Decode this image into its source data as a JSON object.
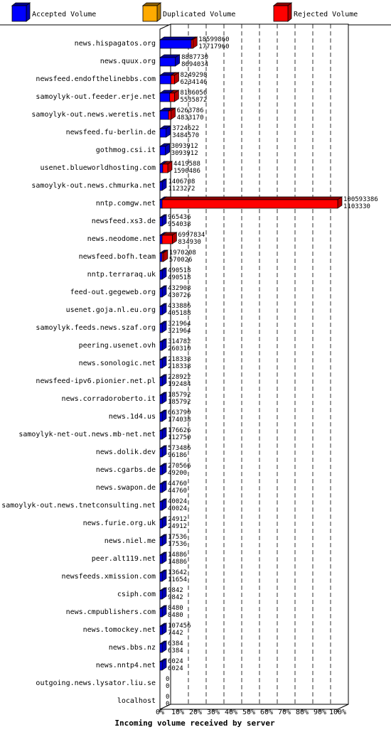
{
  "chart_data": {
    "type": "bar",
    "orientation": "horizontal",
    "three_d": true,
    "title": "",
    "xlabel": "Incoming volume received by server",
    "ylabel": "",
    "xlim": [
      0,
      100
    ],
    "x_tick_labels": [
      "0%",
      "10%",
      "20%",
      "30%",
      "40%",
      "50%",
      "60%",
      "70%",
      "80%",
      "90%",
      "100%"
    ],
    "grid": "vertical-dashed",
    "legend_position": "top",
    "legend": [
      {
        "label": "Accepted Volume",
        "color": "#0000ff"
      },
      {
        "label": "Duplicated Volume",
        "color": "#ffaa00"
      },
      {
        "label": "Rejected Volume",
        "color": "#ff0000"
      }
    ],
    "colors": {
      "accepted": "#0000ff",
      "duplicated": "#ffaa00",
      "rejected": "#ff0000"
    },
    "rows": [
      {
        "server": "news.hispagatos.org",
        "total": "18599860",
        "accepted": "17717960",
        "total_num": 18599860,
        "accepted_num": 17717960
      },
      {
        "server": "news.quux.org",
        "total": "8887730",
        "accepted": "8694034",
        "total_num": 8887730,
        "accepted_num": 8694034
      },
      {
        "server": "newsfeed.endofthelinebbs.com",
        "total": "8249298",
        "accepted": "6234146",
        "total_num": 8249298,
        "accepted_num": 6234146
      },
      {
        "server": "samoylyk-out.feeder.erje.net",
        "total": "8186056",
        "accepted": "5535872",
        "total_num": 8186056,
        "accepted_num": 5535872
      },
      {
        "server": "samoylyk-out.news.weretis.net",
        "total": "6263786",
        "accepted": "4833170",
        "total_num": 6263786,
        "accepted_num": 4833170
      },
      {
        "server": "newsfeed.fu-berlin.de",
        "total": "3724622",
        "accepted": "3484570",
        "total_num": 3724622,
        "accepted_num": 3484570
      },
      {
        "server": "gothmog.csi.it",
        "total": "3093912",
        "accepted": "3093912",
        "total_num": 3093912,
        "accepted_num": 3093912
      },
      {
        "server": "usenet.blueworldhosting.com",
        "total": "4419588",
        "accepted": "1590486",
        "total_num": 4419588,
        "accepted_num": 1590486
      },
      {
        "server": "samoylyk-out.news.chmurka.net",
        "total": "1406708",
        "accepted": "1123272",
        "total_num": 1406708,
        "accepted_num": 1123272
      },
      {
        "server": "nntp.comgw.net",
        "total": "100593386",
        "accepted": "1103330",
        "total_num": 100593386,
        "accepted_num": 1103330
      },
      {
        "server": "newsfeed.xs3.de",
        "total": "965436",
        "accepted": "954038",
        "total_num": 965436,
        "accepted_num": 954038
      },
      {
        "server": "news.neodome.net",
        "total": "6997834",
        "accepted": "834930",
        "total_num": 6997834,
        "accepted_num": 834930
      },
      {
        "server": "newsfeed.bofh.team",
        "total": "1970208",
        "accepted": "570026",
        "total_num": 1970208,
        "accepted_num": 570026
      },
      {
        "server": "nntp.terraraq.uk",
        "total": "490518",
        "accepted": "490518",
        "total_num": 490518,
        "accepted_num": 490518
      },
      {
        "server": "feed-out.gegeweb.org",
        "total": "432908",
        "accepted": "430726",
        "total_num": 432908,
        "accepted_num": 430726
      },
      {
        "server": "usenet.goja.nl.eu.org",
        "total": "433886",
        "accepted": "405188",
        "total_num": 433886,
        "accepted_num": 405188
      },
      {
        "server": "samoylyk.feeds.news.szaf.org",
        "total": "321964",
        "accepted": "321964",
        "total_num": 321964,
        "accepted_num": 321964
      },
      {
        "server": "peering.usenet.ovh",
        "total": "314782",
        "accepted": "260310",
        "total_num": 314782,
        "accepted_num": 260310
      },
      {
        "server": "news.sonologic.net",
        "total": "218338",
        "accepted": "218338",
        "total_num": 218338,
        "accepted_num": 218338
      },
      {
        "server": "newsfeed-ipv6.pionier.net.pl",
        "total": "228922",
        "accepted": "192484",
        "total_num": 228922,
        "accepted_num": 192484
      },
      {
        "server": "news.corradoroberto.it",
        "total": "185792",
        "accepted": "185792",
        "total_num": 185792,
        "accepted_num": 185792
      },
      {
        "server": "news.1d4.us",
        "total": "663790",
        "accepted": "174038",
        "total_num": 663790,
        "accepted_num": 174038
      },
      {
        "server": "samoylyk-net-out.news.mb-net.net",
        "total": "176626",
        "accepted": "112750",
        "total_num": 176626,
        "accepted_num": 112750
      },
      {
        "server": "news.dolik.dev",
        "total": "573486",
        "accepted": "96186",
        "total_num": 573486,
        "accepted_num": 96186
      },
      {
        "server": "news.cgarbs.de",
        "total": "270566",
        "accepted": "49200",
        "total_num": 270566,
        "accepted_num": 49200
      },
      {
        "server": "news.swapon.de",
        "total": "44760",
        "accepted": "44760",
        "total_num": 44760,
        "accepted_num": 44760
      },
      {
        "server": "samoylyk-out.news.tnetconsulting.net",
        "total": "40024",
        "accepted": "40024",
        "total_num": 40024,
        "accepted_num": 40024
      },
      {
        "server": "news.furie.org.uk",
        "total": "24912",
        "accepted": "24912",
        "total_num": 24912,
        "accepted_num": 24912
      },
      {
        "server": "news.niel.me",
        "total": "17536",
        "accepted": "17536",
        "total_num": 17536,
        "accepted_num": 17536
      },
      {
        "server": "peer.alt119.net",
        "total": "14886",
        "accepted": "14886",
        "total_num": 14886,
        "accepted_num": 14886
      },
      {
        "server": "newsfeeds.xmission.com",
        "total": "13642",
        "accepted": "11654",
        "total_num": 13642,
        "accepted_num": 11654
      },
      {
        "server": "csiph.com",
        "total": "9842",
        "accepted": "9842",
        "total_num": 9842,
        "accepted_num": 9842
      },
      {
        "server": "news.cmpublishers.com",
        "total": "8480",
        "accepted": "8480",
        "total_num": 8480,
        "accepted_num": 8480
      },
      {
        "server": "news.tomockey.net",
        "total": "107456",
        "accepted": "7442",
        "total_num": 107456,
        "accepted_num": 7442
      },
      {
        "server": "news.bbs.nz",
        "total": "6384",
        "accepted": "6384",
        "total_num": 6384,
        "accepted_num": 6384
      },
      {
        "server": "news.nntp4.net",
        "total": "6024",
        "accepted": "6024",
        "total_num": 6024,
        "accepted_num": 6024
      },
      {
        "server": "outgoing.news.lysator.liu.se",
        "total": "0",
        "accepted": "0",
        "total_num": 0,
        "accepted_num": 0
      },
      {
        "server": "localhost",
        "total": "0",
        "accepted": "0",
        "total_num": 0,
        "accepted_num": 0
      }
    ]
  }
}
